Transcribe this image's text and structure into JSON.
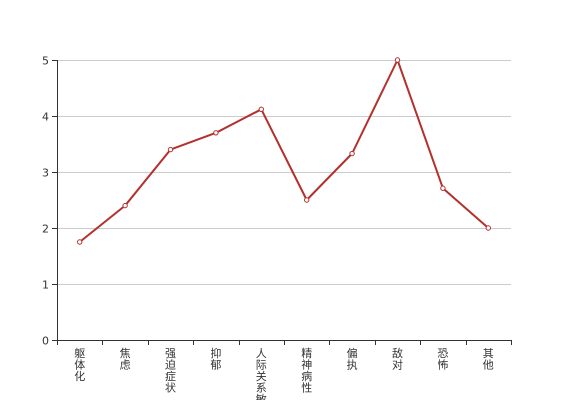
{
  "chart_data": {
    "type": "line",
    "title": "",
    "xlabel": "",
    "ylabel": "",
    "categories": [
      "躯体化",
      "焦虑",
      "强迫症状",
      "抑郁",
      "人际关系敏感",
      "精神病性",
      "偏执",
      "敌对",
      "恐怖",
      "其他"
    ],
    "values": [
      1.75,
      2.4,
      3.4,
      3.7,
      4.12,
      2.5,
      3.33,
      5.0,
      2.71,
      2.0
    ],
    "ylim": [
      0,
      5
    ],
    "yticks": [
      0,
      1,
      2,
      3,
      4,
      5
    ],
    "grid": true,
    "legend": "none",
    "color": "#b3302c"
  }
}
